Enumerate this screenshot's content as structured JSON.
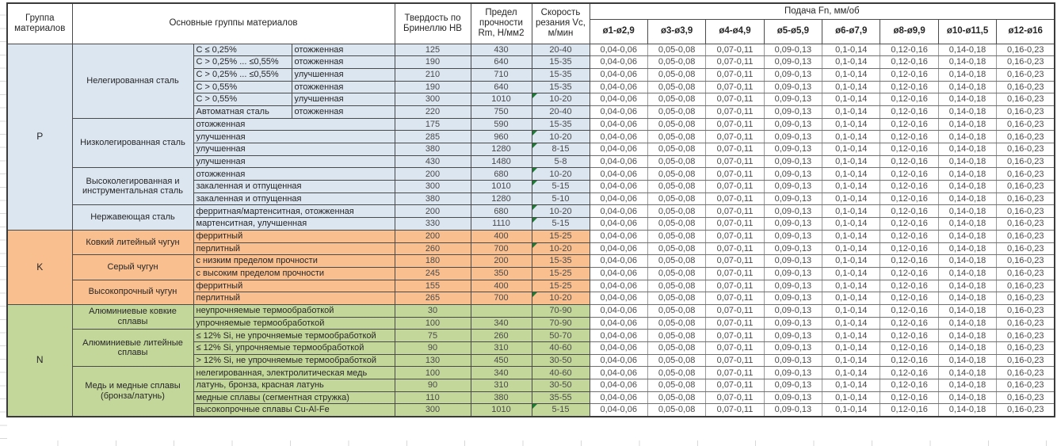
{
  "header": {
    "group": "Группа материалов",
    "materials": "Основные группы материалов",
    "hardness": "Твердость по Бринеллю HB",
    "strength": "Предел прочности Rm, Н/мм2",
    "speed": "Скорость резания Vc, м/мин",
    "feed": "Подача Fn, мм/об",
    "diameters": [
      "ø1-ø2,9",
      "ø3-ø3,9",
      "ø4-ø4,9",
      "ø5-ø5,9",
      "ø6-ø7,9",
      "ø8-ø9,9",
      "ø10-ø11,5",
      "ø12-ø16"
    ]
  },
  "feed_values": [
    "0,04-0,06",
    "0,05-0,08",
    "0,07-0,11",
    "0,09-0,13",
    "0,1-0,14",
    "0,12-0,16",
    "0,14-0,18",
    "0,16-0,23"
  ],
  "colors": {
    "group_p_blue": "#DCE6F1",
    "group_k_orange": "#FABF8F",
    "group_n_green": "#C4D79B",
    "feed_bg": "#FFFFFF",
    "marker_green": "#1E7B34"
  },
  "groups": [
    {
      "code": "P",
      "cls": "p",
      "materials": [
        {
          "name": "Нелегированная сталь",
          "rows": [
            {
              "spec": "C ≤ 0,25%",
              "state": "отожженная",
              "hb": "125",
              "rm": "430",
              "vc": "20-40",
              "marker": false
            },
            {
              "spec": "C > 0,25% ... ≤0,55%",
              "state": "отожженная",
              "hb": "190",
              "rm": "640",
              "vc": "15-35",
              "marker": false
            },
            {
              "spec": "C > 0,25% ... ≤0,55%",
              "state": "улучшенная",
              "hb": "210",
              "rm": "710",
              "vc": "15-35",
              "marker": false
            },
            {
              "spec": "C > 0,55%",
              "state": "отожженная",
              "hb": "190",
              "rm": "640",
              "vc": "15-35",
              "marker": false
            },
            {
              "spec": "C > 0,55%",
              "state": "улучшенная",
              "hb": "300",
              "rm": "1010",
              "vc": "10-20",
              "marker": true
            },
            {
              "spec": "Автоматная сталь",
              "state": "отожженная",
              "hb": "220",
              "rm": "750",
              "vc": "20-40",
              "marker": false
            }
          ]
        },
        {
          "name": "Низколегированная сталь",
          "rows": [
            {
              "spec": "отожженная",
              "hb": "175",
              "rm": "590",
              "vc": "15-35",
              "marker": false
            },
            {
              "spec": "улучшенная",
              "hb": "285",
              "rm": "960",
              "vc": "10-20",
              "marker": true
            },
            {
              "spec": "улучшенная",
              "hb": "380",
              "rm": "1280",
              "vc": "8-15",
              "marker": true
            },
            {
              "spec": "улучшенная",
              "hb": "430",
              "rm": "1480",
              "vc": "5-8",
              "marker": false
            }
          ]
        },
        {
          "name": "Высоколегированная и инструментальная сталь",
          "rows": [
            {
              "spec": "отожженная",
              "hb": "200",
              "rm": "680",
              "vc": "10-20",
              "marker": true
            },
            {
              "spec": "закаленная и отпущенная",
              "hb": "300",
              "rm": "1010",
              "vc": "5-15",
              "marker": true
            },
            {
              "spec": "закаленная и отпущенная",
              "hb": "380",
              "rm": "1280",
              "vc": "5-10",
              "marker": false
            }
          ]
        },
        {
          "name": "Нержавеющая сталь",
          "rows": [
            {
              "spec": "ферритная/мартенситная, отожженная",
              "hb": "200",
              "rm": "680",
              "vc": "10-20",
              "marker": true
            },
            {
              "spec": "мартенситная, улучшенная",
              "hb": "330",
              "rm": "1110",
              "vc": "5-15",
              "marker": true
            }
          ]
        }
      ]
    },
    {
      "code": "K",
      "cls": "k",
      "materials": [
        {
          "name": "Ковкий литейный чугун",
          "rows": [
            {
              "spec": "ферритный",
              "hb": "200",
              "rm": "400",
              "vc": "15-25",
              "marker": false
            },
            {
              "spec": "перлитный",
              "hb": "260",
              "rm": "700",
              "vc": "10-20",
              "marker": true
            }
          ]
        },
        {
          "name": "Серый чугун",
          "rows": [
            {
              "spec": "с низким пределом прочности",
              "hb": "180",
              "rm": "200",
              "vc": "15-35",
              "marker": false
            },
            {
              "spec": "с высоким пределом прочности",
              "hb": "245",
              "rm": "350",
              "vc": "15-25",
              "marker": false
            }
          ]
        },
        {
          "name": "Высокопрочный чугун",
          "rows": [
            {
              "spec": "ферритный",
              "hb": "155",
              "rm": "400",
              "vc": "15-25",
              "marker": false
            },
            {
              "spec": "перлитный",
              "hb": "265",
              "rm": "700",
              "vc": "10-20",
              "marker": true
            }
          ]
        }
      ]
    },
    {
      "code": "N",
      "cls": "n",
      "materials": [
        {
          "name": "Алюминиевые ковкие сплавы",
          "rows": [
            {
              "spec": "неупрочняемые термообработкой",
              "hb": "30",
              "rm": "",
              "vc": "70-90",
              "marker": false
            },
            {
              "spec": "упрочняемые термообработкой",
              "hb": "100",
              "rm": "340",
              "vc": "70-90",
              "marker": false
            }
          ]
        },
        {
          "name": "Алюминиевые литейные сплавы",
          "rows": [
            {
              "spec": "≤ 12% Si, не упрочняемые термообработкой",
              "hb": "75",
              "rm": "260",
              "vc": "50-70",
              "marker": false
            },
            {
              "spec": "≤ 12% Si, упрочняемые термообработкой",
              "hb": "90",
              "rm": "310",
              "vc": "40-60",
              "marker": false
            },
            {
              "spec": "> 12% Si, не упрочняемые термообработкой",
              "hb": "130",
              "rm": "450",
              "vc": "30-50",
              "marker": false
            }
          ]
        },
        {
          "name": "Медь и медные сплавы (бронза/латунь)",
          "rows": [
            {
              "spec": "нелегированная, электролитическая медь",
              "hb": "100",
              "rm": "340",
              "vc": "40-60",
              "marker": false
            },
            {
              "spec": "латунь, бронза, красная латунь",
              "hb": "90",
              "rm": "310",
              "vc": "30-50",
              "marker": false
            },
            {
              "spec": "медные сплавы (сегментная стружка)",
              "hb": "110",
              "rm": "380",
              "vc": "35-55",
              "marker": false
            },
            {
              "spec": "высокопрочные сплавы Cu-Al-Fe",
              "hb": "300",
              "rm": "1010",
              "vc": "5-15",
              "marker": true
            }
          ]
        }
      ]
    }
  ]
}
